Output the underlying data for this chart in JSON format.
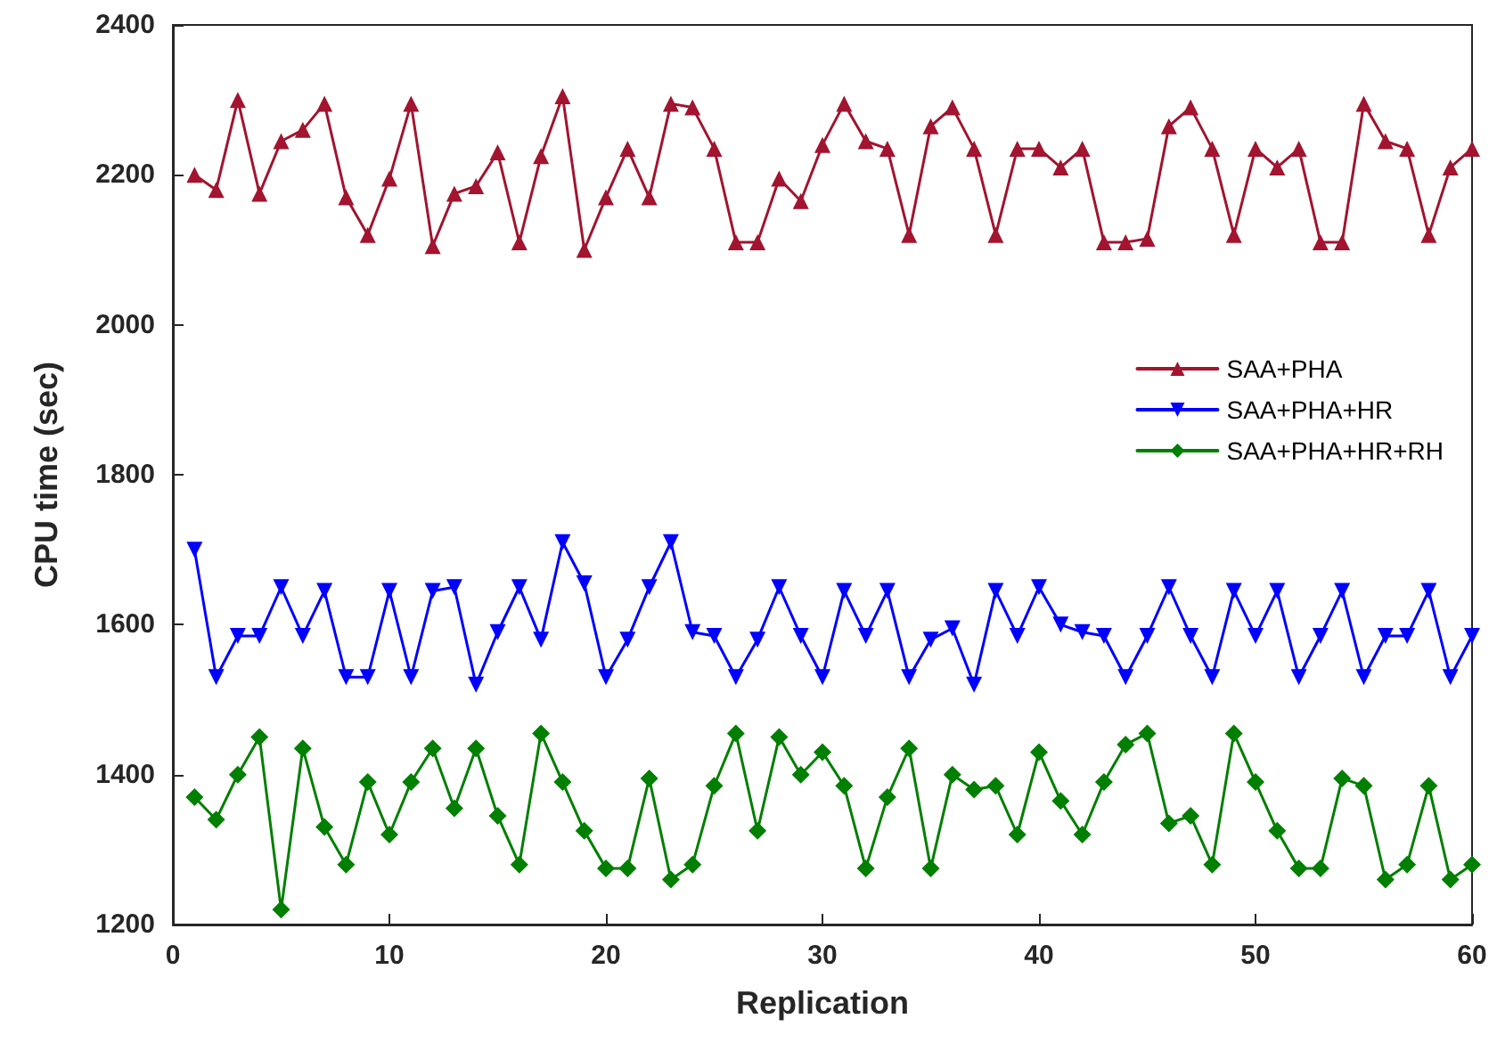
{
  "chart_data": {
    "type": "line",
    "xlabel": "Replication",
    "ylabel": "CPU time (sec)",
    "x": [
      1,
      2,
      3,
      4,
      5,
      6,
      7,
      8,
      9,
      10,
      11,
      12,
      13,
      14,
      15,
      16,
      17,
      18,
      19,
      20,
      21,
      22,
      23,
      24,
      25,
      26,
      27,
      28,
      29,
      30,
      31,
      32,
      33,
      34,
      35,
      36,
      37,
      38,
      39,
      40,
      41,
      42,
      43,
      44,
      45,
      46,
      47,
      48,
      49,
      50,
      51,
      52,
      53,
      54,
      55,
      56,
      57,
      58,
      59,
      60
    ],
    "xlim": [
      0,
      60
    ],
    "xticks": [
      0,
      10,
      20,
      30,
      40,
      50,
      60
    ],
    "ylim": [
      1200,
      2400
    ],
    "yticks": [
      1200,
      1400,
      1600,
      1800,
      2000,
      2200,
      2400
    ],
    "grid": false,
    "legend": "right",
    "line_style": "solid",
    "series": [
      {
        "name": "SAA+PHA",
        "color": "#a2142f",
        "marker": "triangle",
        "values": [
          2200,
          2180,
          2300,
          2175,
          2245,
          2260,
          2295,
          2170,
          2120,
          2195,
          2295,
          2105,
          2175,
          2185,
          2230,
          2110,
          2225,
          2305,
          2100,
          2170,
          2235,
          2170,
          2295,
          2290,
          2235,
          2110,
          2110,
          2195,
          2165,
          2240,
          2295,
          2245,
          2235,
          2120,
          2265,
          2290,
          2235,
          2120,
          2235,
          2235,
          2210,
          2235,
          2110,
          2110,
          2115,
          2265,
          2290,
          2235,
          2120,
          2235,
          2210,
          2235,
          2110,
          2110,
          2295,
          2245,
          2235,
          2120,
          2210,
          2235
        ]
      },
      {
        "name": "SAA+PHA+HR",
        "color": "#0000ff",
        "marker": "triangle-down",
        "values": [
          1700,
          1530,
          1585,
          1585,
          1650,
          1585,
          1645,
          1530,
          1530,
          1645,
          1530,
          1645,
          1650,
          1520,
          1590,
          1650,
          1580,
          1710,
          1655,
          1530,
          1580,
          1650,
          1710,
          1590,
          1585,
          1530,
          1580,
          1650,
          1585,
          1530,
          1645,
          1585,
          1645,
          1530,
          1580,
          1595,
          1520,
          1645,
          1585,
          1650,
          1600,
          1590,
          1585,
          1530,
          1585,
          1650,
          1585,
          1530,
          1645,
          1585,
          1645,
          1530,
          1585,
          1645,
          1530,
          1585,
          1585,
          1645,
          1530,
          1585
        ]
      },
      {
        "name": "SAA+PHA+HR+RH",
        "color": "#007f00",
        "marker": "diamond",
        "values": [
          1370,
          1340,
          1400,
          1450,
          1220,
          1435,
          1330,
          1280,
          1390,
          1320,
          1390,
          1435,
          1355,
          1435,
          1345,
          1280,
          1455,
          1390,
          1325,
          1275,
          1275,
          1395,
          1260,
          1280,
          1385,
          1455,
          1325,
          1450,
          1400,
          1430,
          1385,
          1275,
          1370,
          1435,
          1275,
          1400,
          1380,
          1385,
          1320,
          1430,
          1365,
          1320,
          1390,
          1440,
          1455,
          1335,
          1345,
          1280,
          1455,
          1390,
          1325,
          1275,
          1275,
          1395,
          1385,
          1260,
          1280,
          1385,
          1260,
          1280
        ]
      }
    ]
  }
}
